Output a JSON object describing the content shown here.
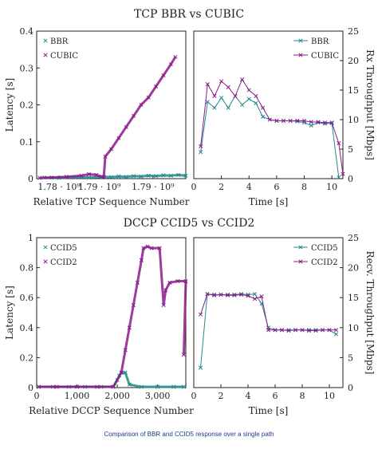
{
  "caption": "Comparison of BBR and CCID5 response over a single path",
  "colors": {
    "teal": "#1f8a8c",
    "purple": "#8b1a8b"
  },
  "chart_data": [
    {
      "id": "tcp_latency",
      "type": "scatter",
      "title": "TCP BBR vs CUBIC",
      "xlabel": "Relative TCP Sequence Number",
      "ylabel": "Latency [s]",
      "ylim": [
        0,
        0.4
      ],
      "yticks": [
        "0",
        "0.1",
        "0.2",
        "0.3",
        "0.4"
      ],
      "xticks": [
        "1.78 · 10⁹",
        "1.79 · 10⁹",
        "1.79 · 10⁹"
      ],
      "legend": "top-left",
      "series": [
        {
          "name": "BBR",
          "color": "#1f8a8c",
          "points": [
            [
              0.05,
              0.003
            ],
            [
              0.15,
              0.002
            ],
            [
              0.25,
              0.004
            ],
            [
              0.35,
              0.003
            ],
            [
              0.45,
              0.005
            ],
            [
              0.5,
              0.004
            ],
            [
              0.55,
              0.006
            ],
            [
              0.6,
              0.005
            ],
            [
              0.65,
              0.007
            ],
            [
              0.7,
              0.006
            ],
            [
              0.75,
              0.008
            ],
            [
              0.8,
              0.007
            ],
            [
              0.85,
              0.009
            ],
            [
              0.9,
              0.008
            ],
            [
              0.95,
              0.01
            ],
            [
              1.0,
              0.008
            ]
          ]
        },
        {
          "name": "CUBIC",
          "color": "#8b1a8b",
          "points": [
            [
              0.02,
              0.002
            ],
            [
              0.1,
              0.003
            ],
            [
              0.2,
              0.005
            ],
            [
              0.3,
              0.008
            ],
            [
              0.35,
              0.012
            ],
            [
              0.4,
              0.01
            ],
            [
              0.45,
              0.004
            ],
            [
              0.46,
              0.06
            ],
            [
              0.5,
              0.08
            ],
            [
              0.55,
              0.11
            ],
            [
              0.6,
              0.14
            ],
            [
              0.65,
              0.17
            ],
            [
              0.7,
              0.2
            ],
            [
              0.75,
              0.22
            ],
            [
              0.8,
              0.25
            ],
            [
              0.85,
              0.28
            ],
            [
              0.9,
              0.31
            ],
            [
              0.93,
              0.33
            ]
          ]
        }
      ]
    },
    {
      "id": "tcp_throughput",
      "type": "line",
      "title": "",
      "xlabel": "Time [s]",
      "ylabel": "Rx Throughput [Mbps]",
      "xlim": [
        0,
        10.8
      ],
      "ylim": [
        0,
        25
      ],
      "xticks": [
        "0",
        "2",
        "4",
        "6",
        "8",
        "10"
      ],
      "yticks": [
        "0",
        "5",
        "10",
        "15",
        "20",
        "25"
      ],
      "legend": "top-right",
      "series": [
        {
          "name": "BBR",
          "color": "#1f8a8c",
          "x": [
            0.5,
            1,
            1.5,
            2,
            2.5,
            3,
            3.5,
            4,
            4.5,
            5,
            5.5,
            6,
            6.5,
            7,
            7.5,
            8,
            8.5,
            9,
            9.5,
            10,
            10.5
          ],
          "y": [
            4.5,
            13,
            12,
            13.7,
            12,
            14,
            12.5,
            13.5,
            12.8,
            10.5,
            10,
            9.8,
            9.8,
            9.8,
            9.7,
            9.5,
            9,
            9.5,
            9.3,
            9.4,
            0.2
          ]
        },
        {
          "name": "CUBIC",
          "color": "#8b1a8b",
          "x": [
            0.5,
            1,
            1.5,
            2,
            2.5,
            3,
            3.5,
            4,
            4.5,
            5,
            5.5,
            6,
            6.5,
            7,
            7.5,
            8,
            8.5,
            9,
            9.5,
            10,
            10.5,
            10.8
          ],
          "y": [
            5.5,
            16,
            14,
            16.5,
            15.5,
            14,
            16.8,
            15,
            14,
            12,
            10,
            9.8,
            9.8,
            9.8,
            9.8,
            9.8,
            9.6,
            9.6,
            9.5,
            9.5,
            6,
            0.8
          ]
        }
      ]
    },
    {
      "id": "dccp_latency",
      "type": "scatter",
      "title": "DCCP CCID5 vs CCID2",
      "xlabel": "Relative DCCP Sequence Number",
      "ylabel": "Latency [s]",
      "xlim": [
        0,
        3700
      ],
      "ylim": [
        0,
        1
      ],
      "xticks": [
        "0",
        "1,000",
        "2,000",
        "3,000"
      ],
      "yticks": [
        "0",
        "0.2",
        "0.4",
        "0.6",
        "0.8",
        "1"
      ],
      "legend": "top-left",
      "series": [
        {
          "name": "CCID5",
          "color": "#1f8a8c",
          "points": [
            [
              50,
              0.005
            ],
            [
              400,
              0.005
            ],
            [
              800,
              0.005
            ],
            [
              1200,
              0.005
            ],
            [
              1600,
              0.005
            ],
            [
              1900,
              0.006
            ],
            [
              2000,
              0.05
            ],
            [
              2050,
              0.08
            ],
            [
              2100,
              0.1
            ],
            [
              2200,
              0.1
            ],
            [
              2300,
              0.02
            ],
            [
              2600,
              0.005
            ],
            [
              3000,
              0.005
            ],
            [
              3400,
              0.005
            ],
            [
              3650,
              0.005
            ]
          ]
        },
        {
          "name": "CCID2",
          "color": "#8b1a8b",
          "points": [
            [
              50,
              0.005
            ],
            [
              500,
              0.005
            ],
            [
              1000,
              0.005
            ],
            [
              1500,
              0.005
            ],
            [
              1900,
              0.005
            ],
            [
              2100,
              0.1
            ],
            [
              2200,
              0.25
            ],
            [
              2300,
              0.4
            ],
            [
              2400,
              0.55
            ],
            [
              2500,
              0.7
            ],
            [
              2600,
              0.85
            ],
            [
              2650,
              0.93
            ],
            [
              2750,
              0.94
            ],
            [
              2850,
              0.93
            ],
            [
              3050,
              0.93
            ],
            [
              3150,
              0.55
            ],
            [
              3200,
              0.65
            ],
            [
              3300,
              0.7
            ],
            [
              3500,
              0.71
            ],
            [
              3700,
              0.71
            ],
            [
              3650,
              0.22
            ]
          ]
        }
      ]
    },
    {
      "id": "dccp_throughput",
      "type": "line",
      "title": "",
      "xlabel": "Time [s]",
      "ylabel": "Recv. Throughput [Mbps]",
      "xlim": [
        0,
        11
      ],
      "ylim": [
        0,
        25
      ],
      "xticks": [
        "0",
        "2",
        "4",
        "6",
        "8",
        "10"
      ],
      "yticks": [
        "0",
        "5",
        "10",
        "15",
        "20",
        "25"
      ],
      "legend": "top-right",
      "series": [
        {
          "name": "CCID5",
          "color": "#1f8a8c",
          "x": [
            0.5,
            1,
            1.5,
            2,
            2.5,
            3,
            3.5,
            4,
            4.5,
            5,
            5.5,
            6,
            6.5,
            7,
            7.5,
            8,
            8.5,
            9,
            9.5,
            10,
            10.5
          ],
          "y": [
            3.3,
            15.6,
            15.5,
            15.5,
            15.5,
            15.5,
            15.6,
            15.5,
            15.6,
            14,
            10,
            9.6,
            9.6,
            9.6,
            9.6,
            9.6,
            9.6,
            9.6,
            9.6,
            9.6,
            8.9
          ]
        },
        {
          "name": "CCID2",
          "color": "#8b1a8b",
          "x": [
            0.5,
            1,
            1.5,
            2,
            2.5,
            3,
            3.5,
            4,
            4.5,
            5,
            5.5,
            6,
            6.5,
            7,
            7.5,
            8,
            8.5,
            9,
            9.5,
            10,
            10.5
          ],
          "y": [
            12.2,
            15.6,
            15.4,
            15.5,
            15.4,
            15.4,
            15.5,
            15.3,
            14.8,
            15.2,
            9.6,
            9.6,
            9.6,
            9.5,
            9.6,
            9.6,
            9.5,
            9.5,
            9.6,
            9.6,
            9.6
          ]
        }
      ]
    }
  ]
}
